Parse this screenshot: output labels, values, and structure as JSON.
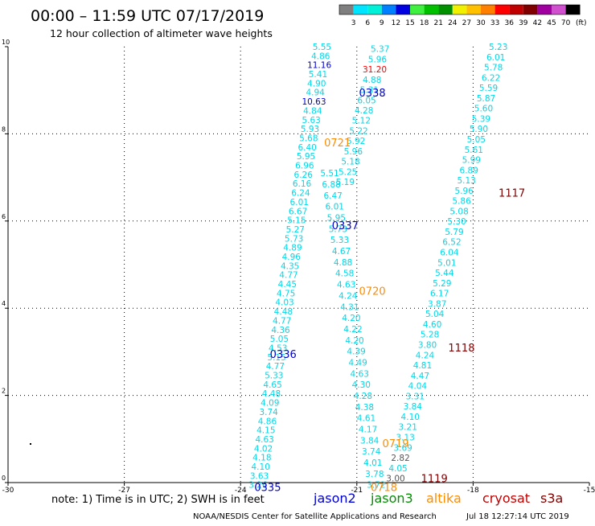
{
  "header": {
    "title": "00:00 – 11:59 UTC 07/17/2019",
    "subtitle": "12 hour collection of altimeter wave heights",
    "unit_label": "(ft)"
  },
  "color_scale": [
    {
      "label": "",
      "color": "#7f7f7f"
    },
    {
      "label": "3",
      "color": "#00e5ff"
    },
    {
      "label": "6",
      "color": "#00f0d8"
    },
    {
      "label": "9",
      "color": "#0080ff"
    },
    {
      "label": "12",
      "color": "#0000e0"
    },
    {
      "label": "15",
      "color": "#40f040"
    },
    {
      "label": "18",
      "color": "#00c000"
    },
    {
      "label": "21",
      "color": "#009000"
    },
    {
      "label": "24",
      "color": "#f0f000"
    },
    {
      "label": "27",
      "color": "#ffc000"
    },
    {
      "label": "30",
      "color": "#ff8000"
    },
    {
      "label": "33",
      "color": "#ff0000"
    },
    {
      "label": "36",
      "color": "#c00000"
    },
    {
      "label": "39",
      "color": "#800000"
    },
    {
      "label": "42",
      "color": "#a000a0"
    },
    {
      "label": "45",
      "color": "#d050d0"
    },
    {
      "label": "70",
      "color": "#000000"
    }
  ],
  "axes": {
    "x_ticks": [
      "-30",
      "-27",
      "-24",
      "-21",
      "-18",
      "-15"
    ],
    "y_ticks": [
      "0",
      "2",
      "4",
      "6",
      "8",
      "10"
    ],
    "x_range": [
      -30,
      -15
    ],
    "y_range": [
      0,
      10
    ]
  },
  "pass_labels": [
    {
      "text": "0335",
      "lon": -23.3,
      "lat": -0.1,
      "color": "#0000d0"
    },
    {
      "text": "0336",
      "lon": -22.9,
      "lat": 2.95,
      "color": "#0000d0"
    },
    {
      "text": "0337",
      "lon": -21.3,
      "lat": 5.9,
      "color": "#0000d0"
    },
    {
      "text": "0338",
      "lon": -20.6,
      "lat": 8.95,
      "color": "#0000d0"
    },
    {
      "text": "0718",
      "lon": -20.3,
      "lat": -0.1,
      "color": "#ff8c00"
    },
    {
      "text": "0719",
      "lon": -20.0,
      "lat": 0.9,
      "color": "#ff8c00"
    },
    {
      "text": "0720",
      "lon": -20.6,
      "lat": 4.4,
      "color": "#ff8c00"
    },
    {
      "text": "0721",
      "lon": -21.5,
      "lat": 7.8,
      "color": "#ff8c00"
    },
    {
      "text": "1117",
      "lon": -17.0,
      "lat": 6.65,
      "color": "#800000"
    },
    {
      "text": "1118",
      "lon": -18.3,
      "lat": 3.1,
      "color": "#800000"
    },
    {
      "text": "1119",
      "lon": -19.0,
      "lat": 0.1,
      "color": "#800000"
    }
  ],
  "tracks": [
    {
      "name": "jason2",
      "lon0": -23.55,
      "lat0": -0.05,
      "lon1": -21.9,
      "lat1": 10.0,
      "values": [
        "3.26",
        "3.63",
        "4.10",
        "4.18",
        "4.02",
        "4.63",
        "4.15",
        "4.86",
        "3.74",
        "4.09",
        "4.48",
        "4.65",
        "5.33",
        "4.77",
        "5.15",
        "4.53",
        "5.05",
        "4.36",
        "4.77",
        "4.48",
        "4.03",
        "4.75",
        "4.45",
        "4.77",
        "4.35",
        "4.96",
        "4.89",
        "5.73",
        "5.27",
        "5.15",
        "6.67",
        "6.01",
        "6.24",
        "6.16",
        "6.26",
        "6.96",
        "5.95",
        "6.40",
        "5.68",
        "5.93",
        "5.63",
        "4.84",
        "10.63",
        "4.94",
        "4.90",
        "5.41",
        "11.16",
        "4.86",
        "5.55"
      ],
      "special": {
        "11.16": "#0000d0",
        "10.63": "#0000d0"
      }
    },
    {
      "name": "altika-0718",
      "lon0": -20.5,
      "lat0": -0.05,
      "lon1": -21.7,
      "lat1": 7.1,
      "values": [
        "3.72",
        "3.78",
        "4.01",
        "3.74",
        "3.84",
        "4.17",
        "4.61",
        "4.38",
        "4.28",
        "4.30",
        "4.63",
        "4.49",
        "4.39",
        "4.20",
        "4.22",
        "4.20",
        "4.31",
        "4.24",
        "4.63",
        "4.58",
        "4.88",
        "4.67",
        "5.33",
        "5.73",
        "5.95",
        "6.01",
        "6.47",
        "6.88",
        "5.51"
      ],
      "special": {}
    },
    {
      "name": "altika-0721",
      "lon0": -21.3,
      "lat0": 6.9,
      "lon1": -20.4,
      "lat1": 9.95,
      "values": [
        "5.19",
        "5.25",
        "5.18",
        "5.96",
        "5.92",
        "5.22",
        "5.12",
        "4.28",
        "6.05",
        "5.31",
        "4.88",
        "31.20",
        "5.96",
        "5.37"
      ],
      "special": {
        "31.20": "#ff0000"
      }
    },
    {
      "name": "cryosat",
      "lon0": -20.0,
      "lat0": 0.1,
      "lon1": -17.35,
      "lat1": 10.0,
      "values": [
        "3.00",
        "4.05",
        "2.82",
        "3.69",
        "3.13",
        "3.21",
        "4.10",
        "3.84",
        "3.31",
        "4.04",
        "4.47",
        "4.81",
        "4.24",
        "3.80",
        "5.28",
        "4.60",
        "5.04",
        "3.87",
        "6.17",
        "5.29",
        "5.44",
        "5.01",
        "6.04",
        "6.52",
        "5.79",
        "5.30",
        "5.08",
        "5.86",
        "5.96",
        "5.13",
        "6.89",
        "5.99",
        "5.61",
        "5.05",
        "5.90",
        "5.39",
        "5.60",
        "5.87",
        "5.59",
        "6.22",
        "5.78",
        "6.01",
        "5.23"
      ],
      "special": {
        "2.82": "#555555",
        "3.00": "#555555"
      }
    }
  ],
  "legend_footer": {
    "note": "note: 1) Time is in UTC; 2) SWH is in feet",
    "sats": [
      {
        "label": "jason2",
        "color": "#0000d0"
      },
      {
        "label": "jason3",
        "color": "#009000"
      },
      {
        "label": "altika",
        "color": "#ff8c00"
      },
      {
        "label": "cryosat",
        "color": "#c00000"
      },
      {
        "label": "s3a",
        "color": "#800000"
      }
    ]
  },
  "credit": "NOAA/NESDIS Center for Satellite Applications and Research",
  "timestamp": "Jul 18 12:27:14 UTC 2019",
  "track_color": "#00d8e8"
}
